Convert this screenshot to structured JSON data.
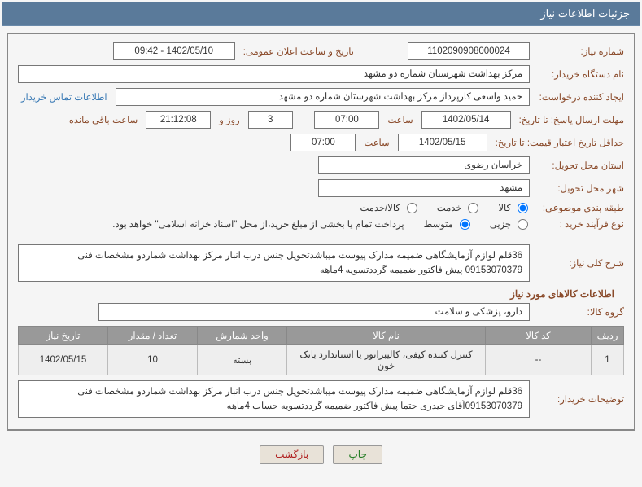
{
  "header": {
    "title": "جزئیات اطلاعات نیاز"
  },
  "colors": {
    "header_bg": "#5a7a9a",
    "label": "#8a4a2a",
    "link": "#3a7ab5",
    "border": "#888888",
    "table_header_bg": "#999999",
    "table_row_bg": "#eeeeee",
    "btn_bg": "#e8e2d8"
  },
  "fields": {
    "need_number_label": "شماره نیاز:",
    "need_number": "1102090908000024",
    "announce_label": "تاریخ و ساعت اعلان عمومی:",
    "announce_value": "1402/05/10 - 09:42",
    "buyer_org_label": "نام دستگاه خریدار:",
    "buyer_org": "مرکز بهداشت شهرستان شماره دو مشهد",
    "requester_label": "ایجاد کننده درخواست:",
    "requester": "حمید واسعی کارپرداز مرکز بهداشت شهرستان شماره دو مشهد",
    "contact_link": "اطلاعات تماس خریدار",
    "deadline_label": "مهلت ارسال پاسخ: تا تاریخ:",
    "deadline_date": "1402/05/14",
    "time_label": "ساعت",
    "deadline_time": "07:00",
    "days_left": "3",
    "days_and_label": "روز و",
    "time_left": "21:12:08",
    "time_left_label": "ساعت باقی مانده",
    "validity_label": "حداقل تاریخ اعتبار قیمت: تا تاریخ:",
    "validity_date": "1402/05/15",
    "validity_time": "07:00",
    "province_label": "استان محل تحویل:",
    "province": "خراسان رضوی",
    "city_label": "شهر محل تحویل:",
    "city": "مشهد",
    "category_label": "طبقه بندی موضوعی:",
    "cat_goods": "کالا",
    "cat_service": "خدمت",
    "cat_both": "کالا/خدمت",
    "process_label": "نوع فرآیند خرید :",
    "proc_small": "جزیی",
    "proc_medium": "متوسط",
    "proc_note": "پرداخت تمام یا بخشی از مبلغ خرید،از محل \"اسناد خزانه اسلامی\" خواهد بود.",
    "summary_label": "شرح کلی نیاز:",
    "summary_text": "36قلم لوازم آزمایشگاهی ضمیمه مدارک پیوست میباشدتحویل جنس درب انبار مرکز بهداشت شماردو مشخصات فنی 09153070379 پیش فاکتور ضمیمه گرددتسویه 4ماهه",
    "section_goods": "اطلاعات کالاهای مورد نیاز",
    "goods_group_label": "گروه کالا:",
    "goods_group": "دارو، پزشکی و سلامت",
    "buyer_notes_label": "توضیحات خریدار:",
    "buyer_notes": "36قلم لوازم آزمایشگاهی ضمیمه مدارک پیوست میباشدتحویل جنس درب انبار مرکز بهداشت شماردو مشخصات فنی 09153070379آقای حیدری حتما پیش فاکتور ضمیمه گرددتسویه حساب 4ماهه"
  },
  "table": {
    "headers": {
      "row": "ردیف",
      "code": "کد کالا",
      "name": "نام کالا",
      "unit": "واحد شمارش",
      "qty": "تعداد / مقدار",
      "need_date": "تاریخ نیاز"
    },
    "rows": [
      {
        "row": "1",
        "code": "--",
        "name": "کنترل کننده کیفی، کالیبراتور یا استاندارد بانک خون",
        "unit": "بسته",
        "qty": "10",
        "need_date": "1402/05/15"
      }
    ],
    "col_widths": {
      "row": "40px",
      "code": "130px",
      "name": "auto",
      "unit": "110px",
      "qty": "110px",
      "need_date": "110px"
    }
  },
  "buttons": {
    "print": "چاپ",
    "back": "بازگشت"
  }
}
